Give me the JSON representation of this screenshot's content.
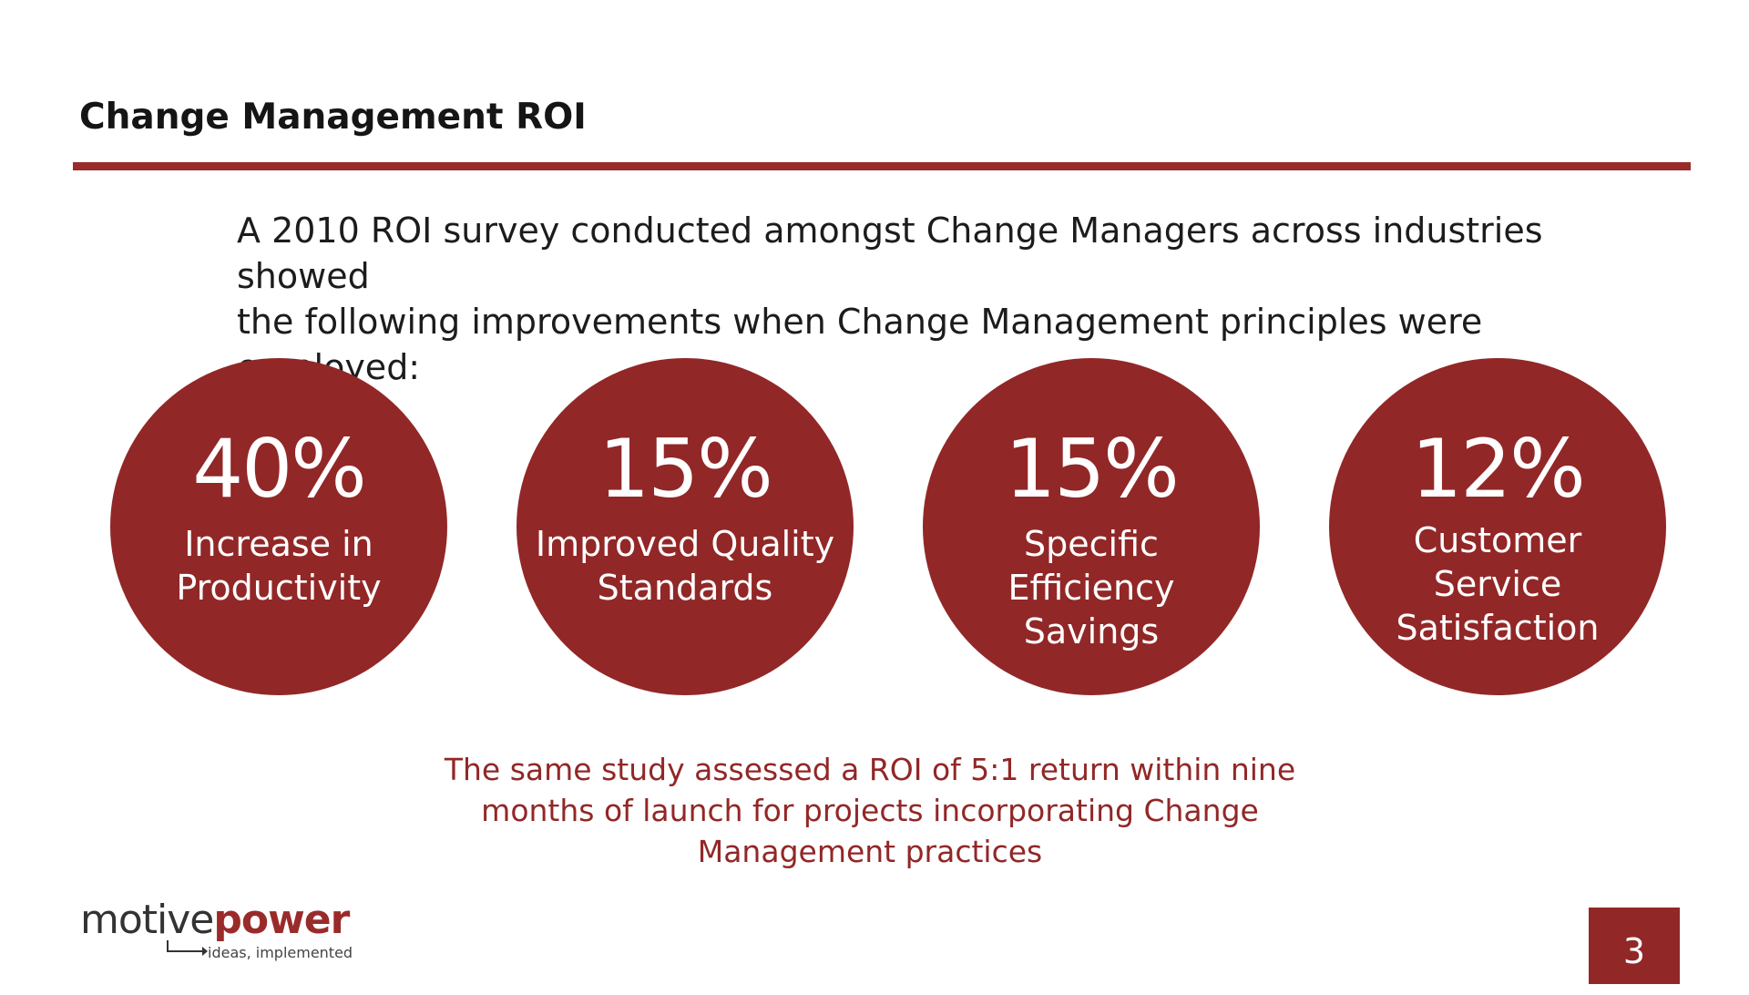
{
  "slide": {
    "title": "Change Management ROI",
    "intro_lines": [
      "A 2010 ROI survey conducted amongst Change Managers across industries showed",
      "the following improvements when Change Management principles were employed:"
    ],
    "stats": [
      {
        "value": "40%",
        "label_lines": [
          "Increase in",
          "Productivity"
        ]
      },
      {
        "value": "15%",
        "label_lines": [
          "Improved Quality",
          "Standards"
        ]
      },
      {
        "value": "15%",
        "label_lines": [
          "Specific Efficiency",
          "Savings"
        ]
      },
      {
        "value": "12%",
        "label_lines": [
          "Customer",
          "Service",
          "Satisfaction"
        ]
      }
    ],
    "closing_lines": [
      "The same study assessed a ROI of 5:1 return within nine",
      "months of launch for projects incorporating Change",
      "Management practices"
    ],
    "page_number": "3"
  },
  "logo": {
    "word_part1": "motive",
    "word_part2": "power",
    "tagline": "ideas, implemented"
  },
  "colors": {
    "accent": "#922727",
    "rule": "#9a2b2b",
    "text": "#1c1c1c"
  }
}
